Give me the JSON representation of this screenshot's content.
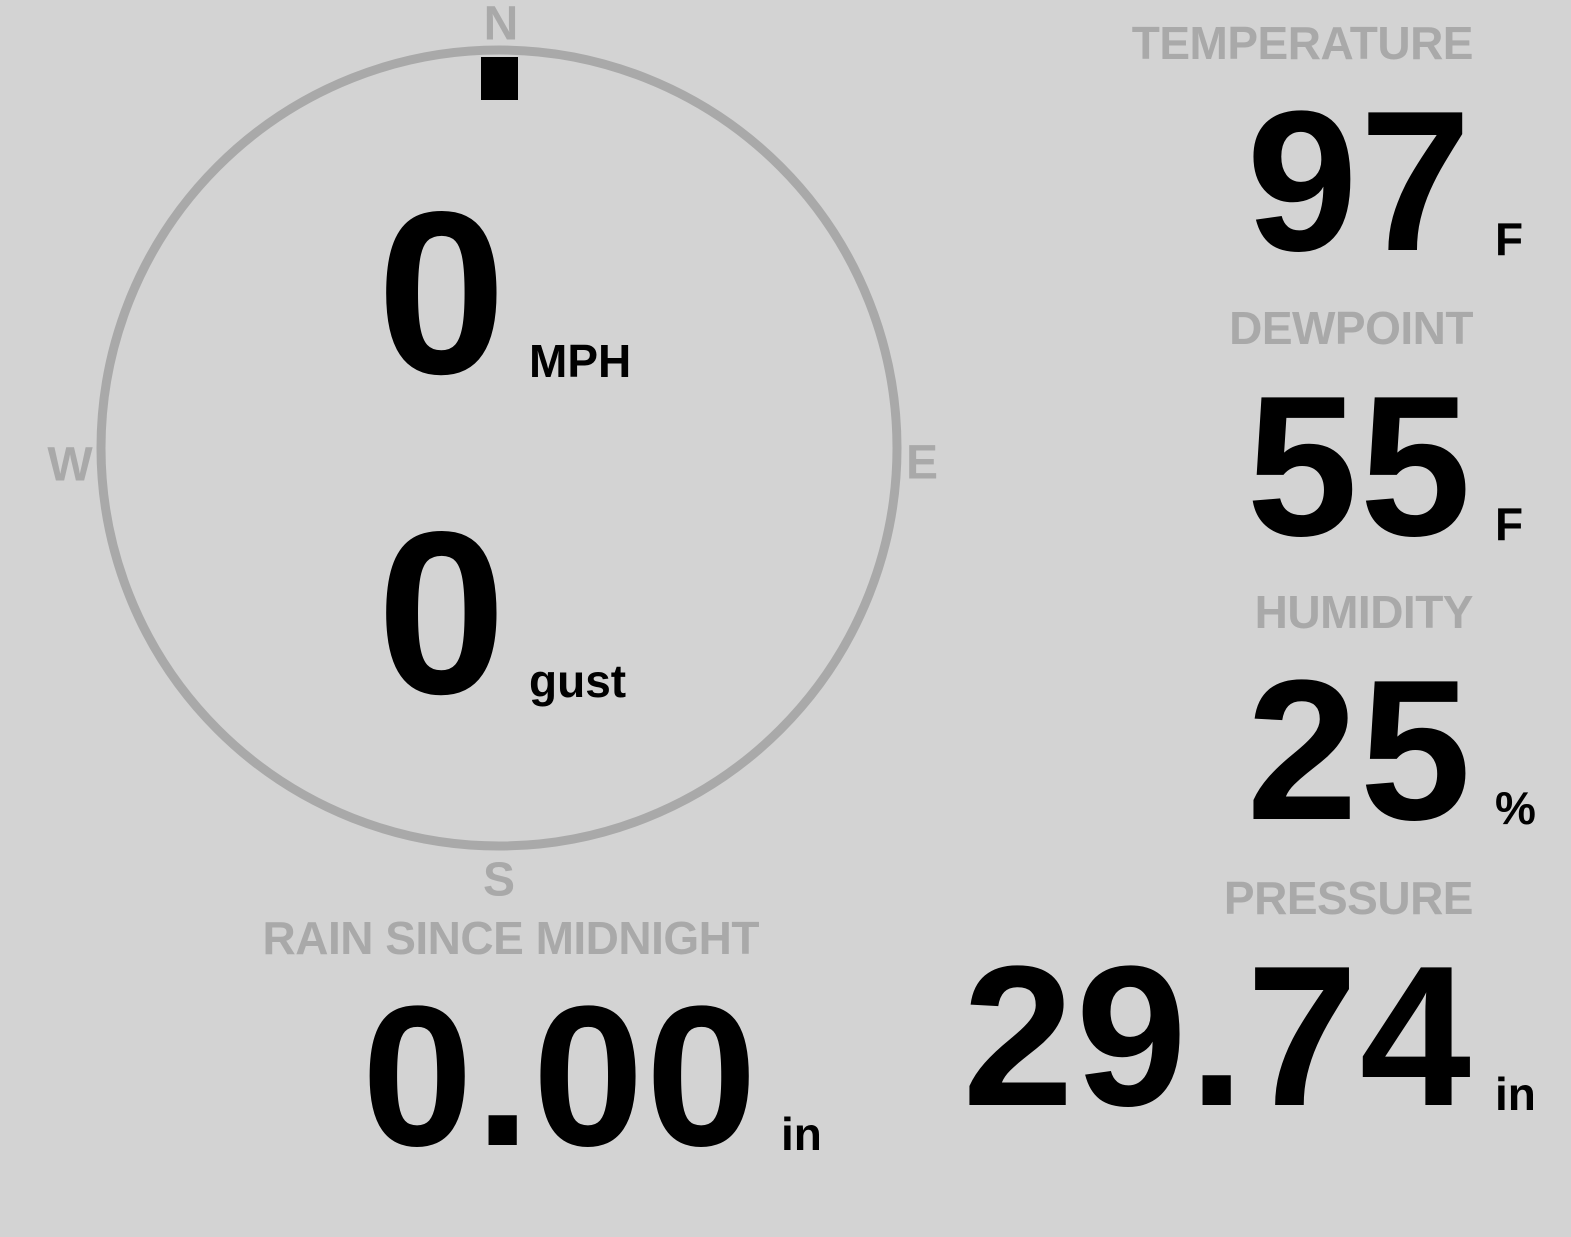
{
  "colors": {
    "background": "#d3d3d3",
    "label": "#a9a9a9",
    "value": "#000000"
  },
  "wind": {
    "compass": {
      "north": "N",
      "east": "E",
      "south": "S",
      "west": "W",
      "direction_degrees": 0
    },
    "speed": {
      "value": "0",
      "unit": "MPH"
    },
    "gust": {
      "value": "0",
      "unit": "gust"
    }
  },
  "temperature": {
    "label": "TEMPERATURE",
    "value": "97",
    "unit": "F"
  },
  "dewpoint": {
    "label": "DEWPOINT",
    "value": "55",
    "unit": "F"
  },
  "humidity": {
    "label": "HUMIDITY",
    "value": "25",
    "unit": "%"
  },
  "pressure": {
    "label": "PRESSURE",
    "value": "29.74",
    "unit": "in"
  },
  "rain": {
    "label": "RAIN SINCE MIDNIGHT",
    "value": "0.00",
    "unit": "in"
  }
}
